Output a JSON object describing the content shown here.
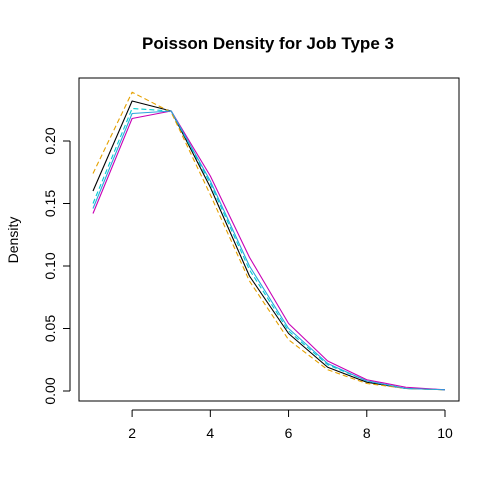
{
  "chart_data": {
    "type": "line",
    "title": "Poisson Density for Job Type 3",
    "xlabel": "",
    "ylabel": "Density",
    "xlim": [
      1,
      10
    ],
    "ylim": [
      0,
      0.24
    ],
    "x_ticks": [
      2,
      4,
      6,
      8,
      10
    ],
    "y_ticks": [
      0.0,
      0.05,
      0.1,
      0.15,
      0.2
    ],
    "y_tick_labels": [
      "0.00",
      "0.05",
      "0.10",
      "0.15",
      "0.20"
    ],
    "grid": false,
    "x": [
      1,
      2,
      3,
      4,
      5,
      6,
      7,
      8,
      9,
      10
    ],
    "series": [
      {
        "color": "#000000",
        "dash": "solid",
        "values": [
          0.16,
          0.232,
          0.224,
          0.163,
          0.092,
          0.046,
          0.019,
          0.007,
          0.002,
          0.001
        ]
      },
      {
        "color": "#00CED1",
        "dash": "dashed",
        "values": [
          0.15,
          0.226,
          0.224,
          0.166,
          0.097,
          0.048,
          0.021,
          0.008,
          0.002,
          0.001
        ]
      },
      {
        "color": "#E5A100",
        "dash": "dashed",
        "values": [
          0.174,
          0.239,
          0.223,
          0.157,
          0.088,
          0.041,
          0.017,
          0.006,
          0.002,
          0.001
        ]
      },
      {
        "color": "#C800B4",
        "dash": "solid",
        "values": [
          0.142,
          0.218,
          0.224,
          0.172,
          0.107,
          0.054,
          0.024,
          0.009,
          0.003,
          0.001
        ]
      },
      {
        "color": "#2AA5DC",
        "dash": "solid",
        "values": [
          0.146,
          0.222,
          0.224,
          0.168,
          0.1,
          0.05,
          0.022,
          0.008,
          0.002,
          0.001
        ]
      }
    ]
  }
}
